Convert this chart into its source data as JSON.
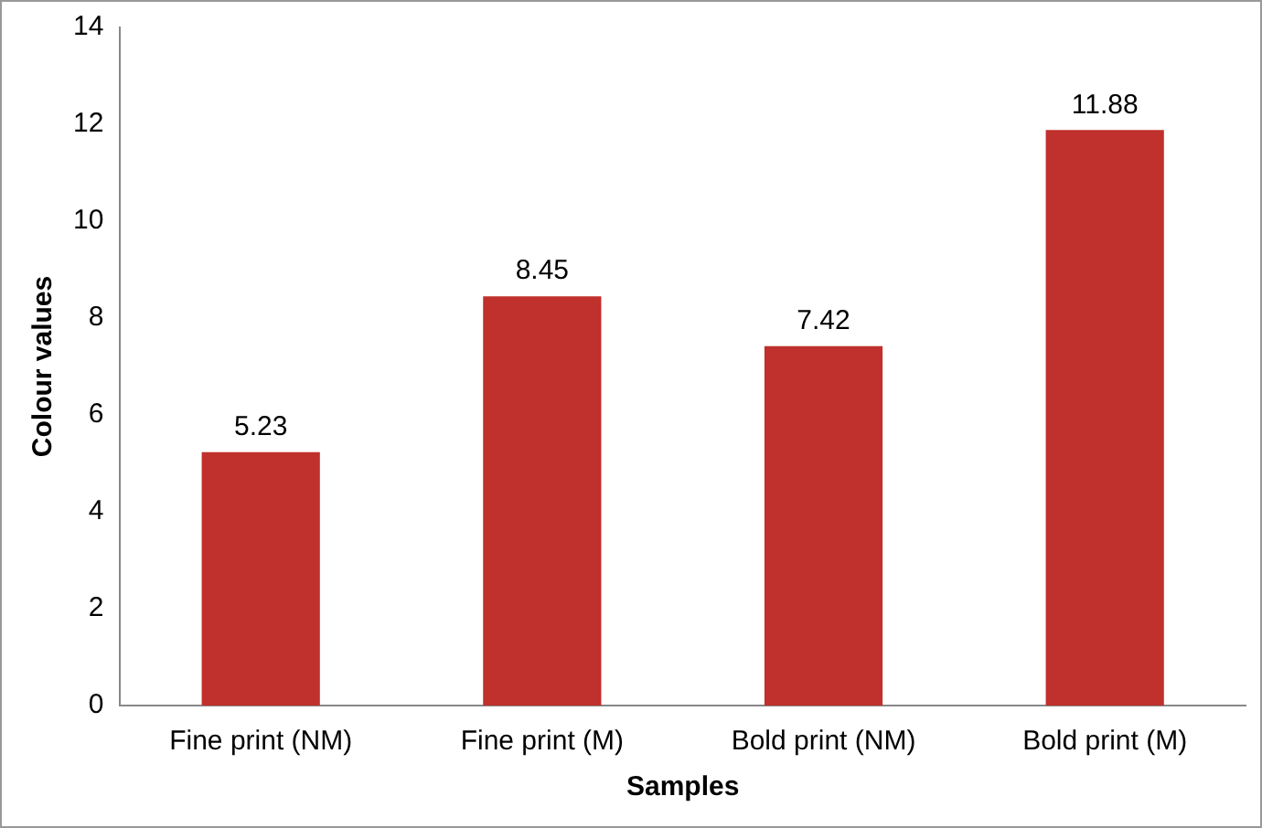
{
  "chart_data": {
    "type": "bar",
    "xlabel": "Samples",
    "ylabel": "Colour values",
    "categories": [
      "Fine print (NM)",
      "Fine print (M)",
      "Bold print (NM)",
      "Bold print (M)"
    ],
    "values": [
      5.23,
      8.45,
      7.42,
      11.88
    ],
    "color": "#c0302c",
    "ylim": [
      0,
      14
    ],
    "yticks": [
      0,
      2,
      4,
      6,
      8,
      10,
      12,
      14
    ],
    "grid": false,
    "data_labels": true
  }
}
